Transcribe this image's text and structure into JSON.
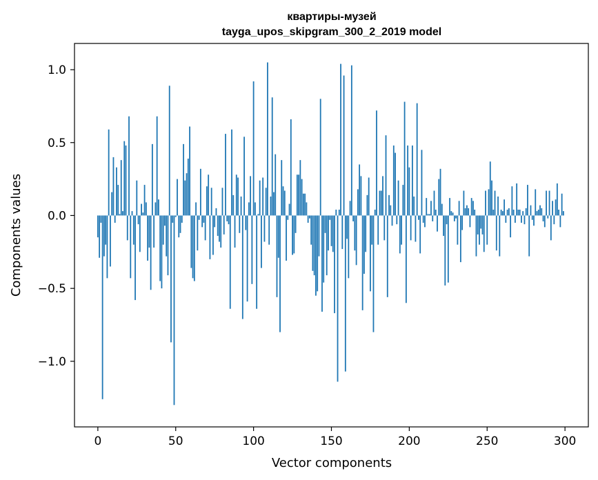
{
  "chart_data": {
    "type": "bar",
    "title": "квартиры-музей",
    "subtitle": "tayga_upos_skipgram_300_2_2019 model",
    "xlabel": "Vector components",
    "ylabel": "Components values",
    "xlim": [
      -15,
      315
    ],
    "ylim": [
      -1.45,
      1.18
    ],
    "xticks": [
      0,
      50,
      100,
      150,
      200,
      250,
      300
    ],
    "xtick_labels": [
      "0",
      "50",
      "100",
      "150",
      "200",
      "250",
      "300"
    ],
    "yticks": [
      -1.0,
      -0.5,
      0.0,
      0.5,
      1.0
    ],
    "ytick_labels": [
      "−1.0",
      "−0.5",
      "0.0",
      "0.5",
      "1.0"
    ],
    "grid": false,
    "bar_color": "#1f77b4",
    "x": [
      0,
      1,
      2,
      3,
      4,
      5,
      6,
      7,
      8,
      9,
      10,
      11,
      12,
      13,
      14,
      15,
      16,
      17,
      18,
      19,
      20,
      21,
      22,
      23,
      24,
      25,
      26,
      27,
      28,
      29,
      30,
      31,
      32,
      33,
      34,
      35,
      36,
      37,
      38,
      39,
      40,
      41,
      42,
      43,
      44,
      45,
      46,
      47,
      48,
      49,
      50,
      51,
      52,
      53,
      54,
      55,
      56,
      57,
      58,
      59,
      60,
      61,
      62,
      63,
      64,
      65,
      66,
      67,
      68,
      69,
      70,
      71,
      72,
      73,
      74,
      75,
      76,
      77,
      78,
      79,
      80,
      81,
      82,
      83,
      84,
      85,
      86,
      87,
      88,
      89,
      90,
      91,
      92,
      93,
      94,
      95,
      96,
      97,
      98,
      99,
      100,
      101,
      102,
      103,
      104,
      105,
      106,
      107,
      108,
      109,
      110,
      111,
      112,
      113,
      114,
      115,
      116,
      117,
      118,
      119,
      120,
      121,
      122,
      123,
      124,
      125,
      126,
      127,
      128,
      129,
      130,
      131,
      132,
      133,
      134,
      135,
      136,
      137,
      138,
      139,
      140,
      141,
      142,
      143,
      144,
      145,
      146,
      147,
      148,
      149,
      150,
      151,
      152,
      153,
      154,
      155,
      156,
      157,
      158,
      159,
      160,
      161,
      162,
      163,
      164,
      165,
      166,
      167,
      168,
      169,
      170,
      171,
      172,
      173,
      174,
      175,
      176,
      177,
      178,
      179,
      180,
      181,
      182,
      183,
      184,
      185,
      186,
      187,
      188,
      189,
      190,
      191,
      192,
      193,
      194,
      195,
      196,
      197,
      198,
      199,
      200,
      201,
      202,
      203,
      204,
      205,
      206,
      207,
      208,
      209,
      210,
      211,
      212,
      213,
      214,
      215,
      216,
      217,
      218,
      219,
      220,
      221,
      222,
      223,
      224,
      225,
      226,
      227,
      228,
      229,
      230,
      231,
      232,
      233,
      234,
      235,
      236,
      237,
      238,
      239,
      240,
      241,
      242,
      243,
      244,
      245,
      246,
      247,
      248,
      249,
      250,
      251,
      252,
      253,
      254,
      255,
      256,
      257,
      258,
      259,
      260,
      261,
      262,
      263,
      264,
      265,
      266,
      267,
      268,
      269,
      270,
      271,
      272,
      273,
      274,
      275,
      276,
      277,
      278,
      279,
      280,
      281,
      282,
      283,
      284,
      285,
      286,
      287,
      288,
      289,
      290,
      291,
      292,
      293,
      294,
      295,
      296,
      297,
      298,
      299
    ],
    "values": [
      -0.15,
      -0.29,
      -0.05,
      -1.26,
      -0.28,
      -0.2,
      -0.43,
      0.59,
      -0.35,
      0.16,
      0.4,
      -0.05,
      0.33,
      0.21,
      0.01,
      0.38,
      0.03,
      0.51,
      0.48,
      -0.17,
      0.68,
      -0.43,
      0.03,
      -0.2,
      -0.58,
      0.24,
      -0.06,
      -0.25,
      0.08,
      0.02,
      0.21,
      0.09,
      -0.31,
      -0.22,
      -0.51,
      0.49,
      -0.22,
      0.09,
      0.68,
      0.11,
      -0.45,
      -0.5,
      -0.2,
      -0.07,
      -0.28,
      -0.41,
      0.89,
      -0.87,
      -0.05,
      -1.3,
      -0.01,
      0.25,
      -0.15,
      -0.12,
      -0.05,
      0.49,
      0.24,
      0.29,
      0.39,
      0.61,
      -0.36,
      -0.43,
      -0.45,
      0.09,
      -0.24,
      -0.03,
      0.32,
      -0.08,
      -0.05,
      -0.17,
      0.2,
      0.28,
      -0.3,
      0.19,
      -0.27,
      -0.08,
      0.05,
      -0.14,
      -0.18,
      -0.22,
      0.19,
      -0.13,
      0.56,
      -0.04,
      -0.06,
      -0.64,
      0.59,
      0.14,
      -0.22,
      0.28,
      0.26,
      -0.12,
      0.13,
      -0.71,
      0.54,
      -0.1,
      -0.59,
      0.09,
      0.27,
      -0.47,
      0.92,
      0.09,
      -0.64,
      0.01,
      0.24,
      -0.36,
      0.26,
      -0.18,
      0.19,
      1.05,
      -0.2,
      0.13,
      0.81,
      0.16,
      0.42,
      -0.56,
      -0.29,
      -0.8,
      0.38,
      0.2,
      0.17,
      -0.31,
      -0.03,
      0.08,
      0.66,
      -0.27,
      -0.26,
      -0.12,
      0.28,
      0.28,
      0.38,
      0.25,
      0.15,
      0.15,
      0.09,
      -0.05,
      -0.02,
      -0.2,
      -0.38,
      -0.41,
      -0.55,
      -0.52,
      -0.28,
      0.8,
      -0.66,
      -0.46,
      -0.12,
      -0.41,
      -0.24,
      -0.03,
      -0.21,
      -0.25,
      -0.67,
      0.04,
      -1.14,
      0.04,
      1.04,
      -0.23,
      0.96,
      -1.07,
      -0.16,
      -0.43,
      0.1,
      1.03,
      -0.04,
      -0.24,
      -0.34,
      0.18,
      0.35,
      0.27,
      -0.65,
      -0.4,
      -0.25,
      0.14,
      0.26,
      -0.52,
      -0.2,
      -0.8,
      0.04,
      0.72,
      -0.2,
      0.17,
      0.17,
      0.27,
      -0.17,
      0.55,
      -0.56,
      0.14,
      0.07,
      -0.07,
      0.48,
      0.43,
      -0.06,
      0.24,
      -0.26,
      -0.2,
      0.21,
      0.78,
      -0.6,
      0.48,
      0.33,
      -0.17,
      0.48,
      0.13,
      -0.18,
      0.77,
      -0.03,
      -0.26,
      0.45,
      -0.05,
      -0.08,
      0.12,
      0.01,
      0.01,
      0.1,
      -0.04,
      0.17,
      0.04,
      -0.11,
      0.25,
      0.32,
      0.08,
      -0.14,
      -0.48,
      -0.06,
      -0.46,
      0.12,
      0.03,
      0.02,
      -0.04,
      -0.02,
      -0.2,
      0.1,
      -0.32,
      -0.1,
      0.17,
      0.05,
      0.07,
      0.05,
      -0.08,
      0.12,
      0.1,
      0.04,
      -0.28,
      -0.13,
      -0.2,
      -0.09,
      -0.13,
      -0.25,
      0.17,
      -0.2,
      0.18,
      0.37,
      0.24,
      0.04,
      0.17,
      -0.24,
      0.13,
      -0.28,
      0.04,
      0.03,
      0.11,
      -0.05,
      0.04,
      0.05,
      -0.15,
      0.2,
      0.04,
      -0.05,
      0.22,
      0.04,
      0.04,
      -0.05,
      0.03,
      -0.06,
      0.05,
      0.21,
      -0.28,
      0.07,
      -0.03,
      -0.07,
      0.18,
      0.03,
      0.04,
      0.07,
      0.05,
      -0.04,
      -0.08,
      0.17,
      -0.02,
      0.17,
      -0.17,
      0.1,
      -0.06,
      0.11,
      0.22,
      0.04,
      -0.08,
      0.15,
      0.03
    ]
  }
}
